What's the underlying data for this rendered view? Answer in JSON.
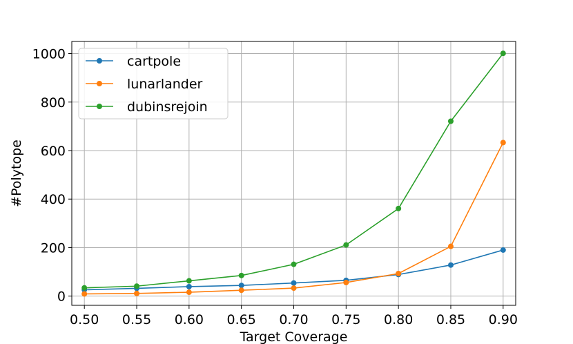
{
  "chart_data": {
    "type": "line",
    "title": "",
    "xlabel": "Target Coverage",
    "ylabel": "#Polytope",
    "x": [
      0.5,
      0.55,
      0.6,
      0.65,
      0.7,
      0.75,
      0.8,
      0.85,
      0.9
    ],
    "x_tick_labels": [
      "0.50",
      "0.55",
      "0.60",
      "0.65",
      "0.70",
      "0.75",
      "0.80",
      "0.85",
      "0.90"
    ],
    "y_ticks": [
      0,
      200,
      400,
      600,
      800,
      1000
    ],
    "y_tick_labels": [
      "0",
      "200",
      "400",
      "600",
      "800",
      "1000"
    ],
    "xlim": [
      0.488,
      0.912
    ],
    "ylim": [
      -38,
      1050
    ],
    "grid": true,
    "legend_position": "top-left",
    "series": [
      {
        "name": "cartpole",
        "color": "#1f77b4",
        "values": [
          26,
          32,
          39,
          44,
          54,
          65,
          89,
          128,
          190
        ]
      },
      {
        "name": "lunarlander",
        "color": "#ff7f0e",
        "values": [
          9,
          11,
          16,
          24,
          33,
          56,
          93,
          205,
          633
        ]
      },
      {
        "name": "dubinsrejoin",
        "color": "#2ca02c",
        "values": [
          34,
          41,
          63,
          85,
          131,
          211,
          361,
          721,
          1001
        ]
      }
    ]
  }
}
